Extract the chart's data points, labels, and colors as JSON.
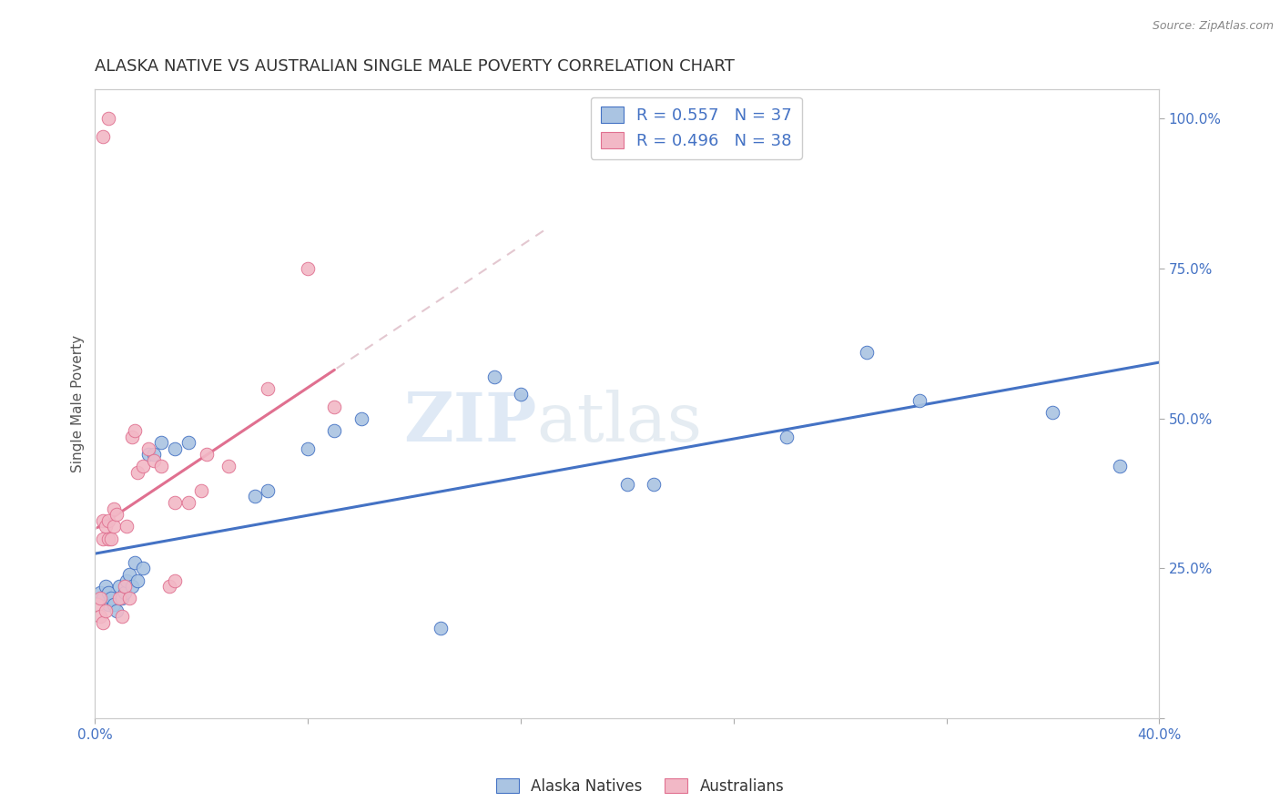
{
  "title": "ALASKA NATIVE VS AUSTRALIAN SINGLE MALE POVERTY CORRELATION CHART",
  "source": "Source: ZipAtlas.com",
  "ylabel_label": "Single Male Poverty",
  "xlim": [
    0.0,
    0.4
  ],
  "ylim": [
    0.0,
    1.05
  ],
  "alaska_color": "#aac4e2",
  "australian_color": "#f2b8c6",
  "alaska_line_color": "#4472c4",
  "australian_line_color": "#e07090",
  "australian_dash_color": "#dbb8c0",
  "legend_text_color": "#4472c4",
  "R_alaska": 0.557,
  "N_alaska": 37,
  "R_australian": 0.496,
  "N_australian": 38,
  "alaska_x": [
    0.002,
    0.003,
    0.004,
    0.005,
    0.005,
    0.006,
    0.007,
    0.008,
    0.009,
    0.01,
    0.011,
    0.012,
    0.013,
    0.014,
    0.015,
    0.016,
    0.018,
    0.02,
    0.022,
    0.025,
    0.03,
    0.035,
    0.06,
    0.065,
    0.08,
    0.09,
    0.1,
    0.13,
    0.15,
    0.16,
    0.2,
    0.21,
    0.26,
    0.29,
    0.31,
    0.36,
    0.385
  ],
  "alaska_y": [
    0.21,
    0.2,
    0.22,
    0.19,
    0.21,
    0.2,
    0.19,
    0.18,
    0.22,
    0.2,
    0.21,
    0.23,
    0.24,
    0.22,
    0.26,
    0.23,
    0.25,
    0.44,
    0.44,
    0.46,
    0.45,
    0.46,
    0.37,
    0.38,
    0.45,
    0.48,
    0.5,
    0.15,
    0.57,
    0.54,
    0.39,
    0.39,
    0.47,
    0.61,
    0.53,
    0.51,
    0.42
  ],
  "australian_x": [
    0.001,
    0.002,
    0.002,
    0.003,
    0.003,
    0.003,
    0.004,
    0.004,
    0.005,
    0.005,
    0.006,
    0.007,
    0.007,
    0.008,
    0.009,
    0.01,
    0.011,
    0.012,
    0.013,
    0.014,
    0.015,
    0.016,
    0.018,
    0.02,
    0.022,
    0.025,
    0.028,
    0.03,
    0.03,
    0.035,
    0.04,
    0.042,
    0.05,
    0.065,
    0.08,
    0.09,
    0.003,
    0.005
  ],
  "australian_y": [
    0.19,
    0.17,
    0.2,
    0.16,
    0.3,
    0.33,
    0.18,
    0.32,
    0.3,
    0.33,
    0.3,
    0.32,
    0.35,
    0.34,
    0.2,
    0.17,
    0.22,
    0.32,
    0.2,
    0.47,
    0.48,
    0.41,
    0.42,
    0.45,
    0.43,
    0.42,
    0.22,
    0.23,
    0.36,
    0.36,
    0.38,
    0.44,
    0.42,
    0.55,
    0.75,
    0.52,
    0.97,
    1.0
  ],
  "watermark_zip": "ZIP",
  "watermark_atlas": "atlas",
  "background_color": "#ffffff",
  "grid_color": "#d8d8d8",
  "title_fontsize": 13,
  "axis_label_fontsize": 11,
  "tick_fontsize": 11,
  "source_fontsize": 9
}
